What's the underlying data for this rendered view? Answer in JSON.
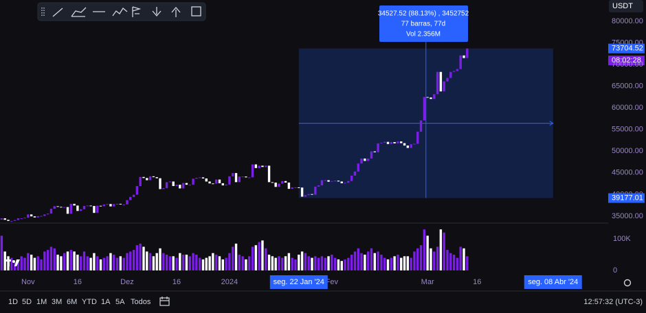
{
  "chart_data": {
    "type": "candlestick",
    "currency": "USDT",
    "countdown": "08:02:28",
    "up_color": "#7b1fe8",
    "down_color": "#ffffff",
    "open": [
      34200,
      34500,
      34150,
      33900,
      33900,
      34100,
      34500,
      34500,
      34650,
      35400,
      34950,
      34700,
      35000,
      35050,
      35400,
      35600,
      36700,
      37300,
      37150,
      37050,
      37100,
      35550,
      37850,
      37450,
      36200,
      36600,
      37350,
      37450,
      37350,
      35750,
      37400,
      37300,
      37700,
      37800,
      37250,
      37800,
      37850,
      37700,
      37700,
      38700,
      39450,
      39950,
      41950,
      44050,
      43800,
      43300,
      44200,
      44000,
      43750,
      41250,
      41450,
      42850,
      43000,
      41950,
      42250,
      41400,
      42650,
      42250,
      42250,
      43650,
      43850,
      43950,
      43700,
      43000,
      42550,
      42500,
      43450,
      42600,
      42100,
      42300,
      44200,
      44950,
      42850,
      44150,
      44150,
      43950,
      43950,
      46950,
      46100,
      46650,
      46350,
      46650,
      42850,
      42750,
      41750,
      42500,
      43100,
      42750,
      41300,
      41650,
      41650,
      41600,
      39500,
      39850,
      40100,
      39950,
      41800,
      42100,
      43300,
      43300,
      42950,
      43100,
      43200,
      43000,
      42600,
      42700,
      43100,
      44350,
      45300,
      47150,
      48300,
      47750,
      48300,
      49950,
      49750,
      51800,
      51950,
      52150,
      51650,
      52100,
      51800,
      52250,
      51850,
      51300,
      50750,
      51600,
      51700,
      54500,
      57100,
      62500,
      62400,
      62050,
      63150,
      68300,
      63800,
      66100,
      66900,
      68300,
      68500,
      68950,
      72100,
      71500
    ],
    "close": [
      34500,
      34150,
      33900,
      33900,
      34100,
      34500,
      34500,
      34650,
      35400,
      34950,
      34700,
      35000,
      35050,
      35400,
      35600,
      36700,
      37300,
      37150,
      37050,
      37100,
      35550,
      37850,
      37450,
      36200,
      36600,
      37350,
      37450,
      37350,
      35750,
      37400,
      37300,
      37700,
      37800,
      37250,
      37800,
      37850,
      37700,
      37700,
      38700,
      39450,
      39950,
      41950,
      44050,
      43800,
      43300,
      44200,
      44000,
      43750,
      41250,
      41450,
      42850,
      43000,
      41950,
      42250,
      41400,
      42650,
      42250,
      42250,
      43650,
      43850,
      43950,
      43700,
      43000,
      42550,
      42500,
      43450,
      42600,
      42100,
      42300,
      44200,
      44950,
      42850,
      44150,
      44150,
      43950,
      43950,
      46950,
      46100,
      46650,
      46350,
      46650,
      42850,
      42750,
      41750,
      42500,
      43100,
      42750,
      41300,
      41650,
      41650,
      41600,
      39500,
      39850,
      40100,
      39950,
      41800,
      42100,
      43300,
      43300,
      42950,
      43100,
      43200,
      43000,
      42600,
      42700,
      43100,
      44350,
      45300,
      47150,
      48300,
      47750,
      48300,
      49950,
      49750,
      51800,
      51950,
      52150,
      51650,
      52100,
      51800,
      52250,
      51850,
      51300,
      50750,
      51600,
      51700,
      54500,
      57100,
      62500,
      62400,
      62050,
      63150,
      68300,
      63800,
      66100,
      66900,
      68300,
      68500,
      68950,
      72100,
      71500,
      73700
    ],
    "volume": [
      110,
      60,
      45,
      40,
      25,
      30,
      45,
      40,
      55,
      50,
      40,
      45,
      35,
      60,
      65,
      75,
      70,
      50,
      45,
      55,
      60,
      65,
      60,
      50,
      45,
      60,
      45,
      40,
      55,
      45,
      35,
      40,
      45,
      55,
      50,
      40,
      45,
      40,
      55,
      60,
      65,
      80,
      85,
      75,
      60,
      55,
      45,
      55,
      70,
      55,
      50,
      45,
      45,
      40,
      55,
      50,
      50,
      45,
      55,
      50,
      40,
      35,
      40,
      45,
      55,
      50,
      45,
      35,
      40,
      55,
      75,
      85,
      50,
      45,
      35,
      45,
      75,
      80,
      90,
      95,
      70,
      50,
      45,
      40,
      45,
      40,
      45,
      55,
      40,
      35,
      50,
      60,
      55,
      45,
      40,
      45,
      40,
      45,
      40,
      45,
      50,
      40,
      35,
      30,
      35,
      40,
      50,
      60,
      70,
      55,
      50,
      60,
      70,
      55,
      60,
      50,
      40,
      35,
      40,
      45,
      50,
      40,
      45,
      45,
      40,
      60,
      70,
      80,
      130,
      110,
      70,
      60,
      75,
      130,
      120,
      65,
      55,
      50,
      40,
      75,
      70,
      45
    ],
    "xlim": [
      -0.5,
      183.5
    ],
    "xticks": [
      {
        "value": 8,
        "label": "Nov"
      },
      {
        "value": 23,
        "label": "16"
      },
      {
        "value": 38,
        "label": "Dez"
      },
      {
        "value": 53,
        "label": "16"
      },
      {
        "value": 69,
        "label": "2024"
      },
      {
        "value": 100,
        "label": "Fev"
      },
      {
        "value": 129,
        "label": "Mar"
      },
      {
        "value": 144,
        "label": "16"
      }
    ],
    "ylim": [
      33400,
      84900
    ],
    "yticks": [
      {
        "value": 35000,
        "label": "35000.00"
      },
      {
        "value": 40000,
        "label": "40000.00"
      },
      {
        "value": 45000,
        "label": "45000.00"
      },
      {
        "value": 50000,
        "label": "50000.00"
      },
      {
        "value": 55000,
        "label": "55000.00"
      },
      {
        "value": 60000,
        "label": "60000.00"
      },
      {
        "value": 65000,
        "label": "65000.00"
      },
      {
        "value": 70000,
        "label": "70000.00"
      },
      {
        "value": 75000,
        "label": "75000.00"
      },
      {
        "value": 80000,
        "label": "80000.00"
      }
    ],
    "volume_ylim": [
      0,
      150
    ],
    "volume_yticks": [
      0,
      {
        "value": 100,
        "label": "100K"
      }
    ],
    "measure": {
      "color": "#2962ff",
      "from": {
        "x": 90,
        "label": "seg. 22 Jan '24",
        "price": {
          "value": 39177.01,
          "label": "39177.01"
        }
      },
      "to": {
        "x": 167,
        "label": "seg. 08 Abr '24",
        "price": {
          "value": 73704.52,
          "label": "73704.52"
        }
      },
      "tooltip": [
        "34527.52 (88.13%) , 3452752",
        "77 barras, 77d",
        "Vol 2.356M"
      ]
    }
  },
  "bottom_bar": {
    "ranges": [
      "1D",
      "5D",
      "1M",
      "3M",
      "6M",
      "YTD",
      "1A",
      "5A",
      "Todos"
    ],
    "clock": "12:57:32 (UTC-3)"
  }
}
